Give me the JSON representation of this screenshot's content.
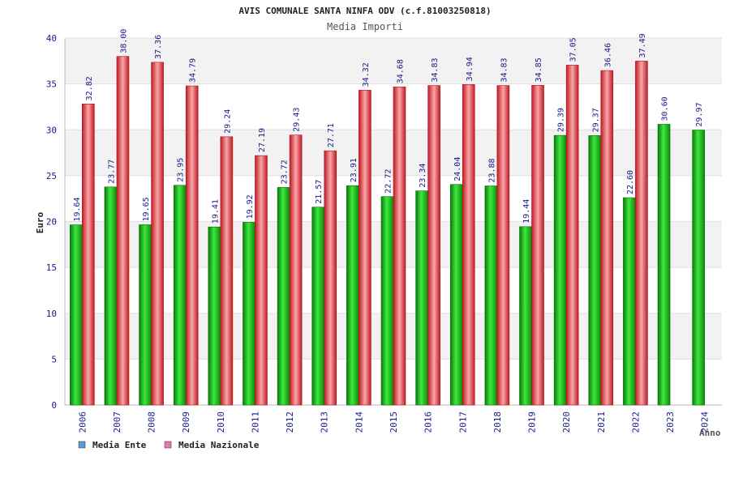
{
  "chart_data": {
    "type": "bar",
    "title": "AVIS COMUNALE SANTA NINFA ODV (c.f.81003250818)",
    "subtitle": "Media Importi",
    "xlabel": "Anno",
    "ylabel": "Euro",
    "ylim": [
      0,
      40
    ],
    "yticks": [
      "0",
      "5",
      "10",
      "15",
      "20",
      "25",
      "30",
      "35",
      "40"
    ],
    "grid": true,
    "legend_position": "bottom-left",
    "categories": [
      "2006",
      "2007",
      "2008",
      "2009",
      "2010",
      "2011",
      "2012",
      "2013",
      "2014",
      "2015",
      "2016",
      "2017",
      "2018",
      "2019",
      "2020",
      "2021",
      "2022",
      "2023",
      "2024"
    ],
    "series": [
      {
        "name": "Media Ente",
        "legend_color": "#5b9bd5",
        "bar_color": "#1bb81b",
        "values": [
          19.64,
          23.77,
          19.65,
          23.95,
          19.41,
          19.92,
          23.72,
          21.57,
          23.91,
          22.72,
          23.34,
          24.04,
          23.88,
          19.44,
          29.39,
          29.37,
          22.6,
          30.6,
          29.97
        ],
        "labels": [
          "19.64",
          "23.77",
          "19.65",
          "23.95",
          "19.41",
          "19.92",
          "23.72",
          "21.57",
          "23.91",
          "22.72",
          "23.34",
          "24.04",
          "23.88",
          "19.44",
          "29.39",
          "29.37",
          "22.60",
          "30.60",
          "29.97"
        ]
      },
      {
        "name": "Media Nazionale",
        "legend_color": "#e07ab0",
        "bar_color": "#e8272f",
        "values": [
          32.82,
          38.0,
          37.36,
          34.79,
          29.24,
          27.19,
          29.43,
          27.71,
          34.32,
          34.68,
          34.83,
          34.94,
          34.83,
          34.85,
          37.05,
          36.46,
          37.49,
          null,
          null
        ],
        "labels": [
          "32.82",
          "38.00",
          "37.36",
          "34.79",
          "29.24",
          "27.19",
          "29.43",
          "27.71",
          "34.32",
          "34.68",
          "34.83",
          "34.94",
          "34.83",
          "34.85",
          "37.05",
          "36.46",
          "37.49",
          null,
          null
        ]
      }
    ]
  }
}
